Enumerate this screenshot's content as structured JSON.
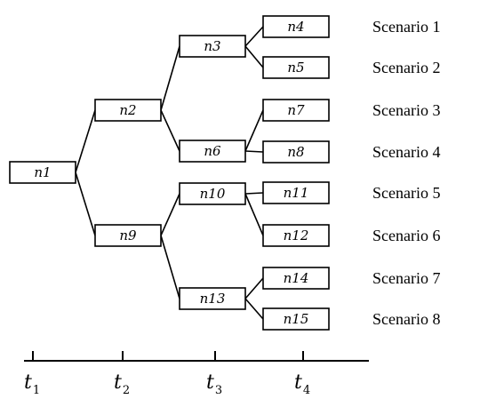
{
  "nodes": [
    {
      "id": "n1",
      "label": "n1"
    },
    {
      "id": "n2",
      "label": "n2"
    },
    {
      "id": "n3",
      "label": "n3"
    },
    {
      "id": "n4",
      "label": "n4"
    },
    {
      "id": "n5",
      "label": "n5"
    },
    {
      "id": "n6",
      "label": "n6"
    },
    {
      "id": "n7",
      "label": "n7"
    },
    {
      "id": "n8",
      "label": "n8"
    },
    {
      "id": "n9",
      "label": "n9"
    },
    {
      "id": "n10",
      "label": "n10"
    },
    {
      "id": "n11",
      "label": "n11"
    },
    {
      "id": "n12",
      "label": "n12"
    },
    {
      "id": "n13",
      "label": "n13"
    },
    {
      "id": "n14",
      "label": "n14"
    },
    {
      "id": "n15",
      "label": "n15"
    }
  ],
  "edges": [
    [
      "n1",
      "n2"
    ],
    [
      "n1",
      "n9"
    ],
    [
      "n2",
      "n3"
    ],
    [
      "n2",
      "n6"
    ],
    [
      "n3",
      "n4"
    ],
    [
      "n3",
      "n5"
    ],
    [
      "n6",
      "n7"
    ],
    [
      "n6",
      "n8"
    ],
    [
      "n9",
      "n10"
    ],
    [
      "n9",
      "n13"
    ],
    [
      "n10",
      "n11"
    ],
    [
      "n10",
      "n12"
    ],
    [
      "n13",
      "n14"
    ],
    [
      "n13",
      "n15"
    ]
  ],
  "scenarios": [
    {
      "label": "Scenario 1",
      "node": "n4"
    },
    {
      "label": "Scenario 2",
      "node": "n5"
    },
    {
      "label": "Scenario 3",
      "node": "n7"
    },
    {
      "label": "Scenario 4",
      "node": "n8"
    },
    {
      "label": "Scenario 5",
      "node": "n11"
    },
    {
      "label": "Scenario 6",
      "node": "n12"
    },
    {
      "label": "Scenario 7",
      "node": "n14"
    },
    {
      "label": "Scenario 8",
      "node": "n15"
    }
  ],
  "time_axis": [
    {
      "base": "t",
      "sub": "1"
    },
    {
      "base": "t",
      "sub": "2"
    },
    {
      "base": "t",
      "sub": "3"
    },
    {
      "base": "t",
      "sub": "4"
    }
  ]
}
